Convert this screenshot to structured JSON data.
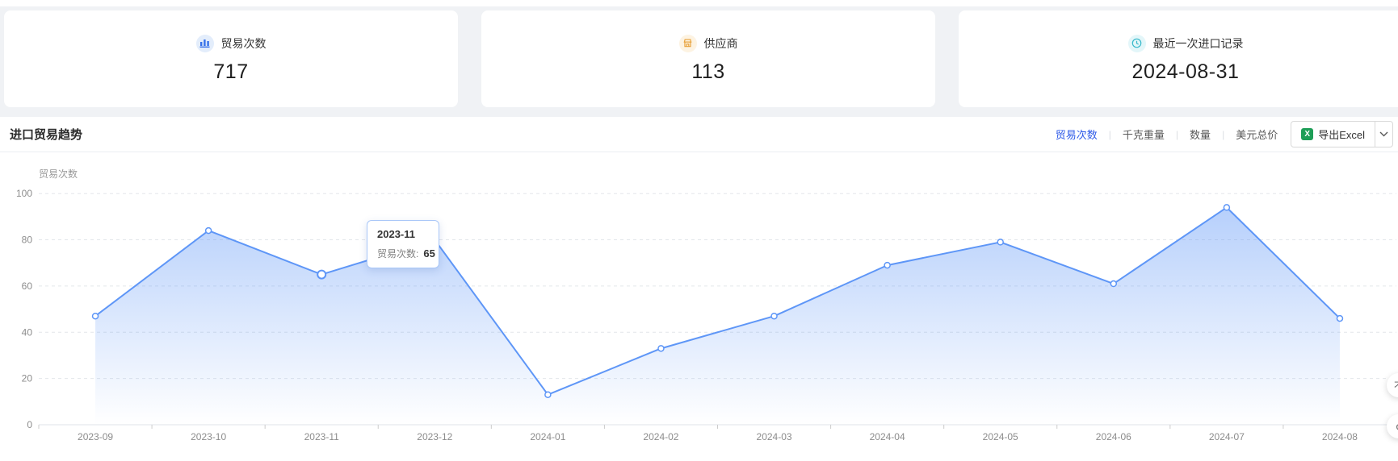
{
  "cards": [
    {
      "label": "贸易次数",
      "value": "717",
      "icon": "bar-chart-icon",
      "icon_color": "#3671e9",
      "icon_bg": "#e3edfb"
    },
    {
      "label": "供应商",
      "value": "113",
      "icon": "supplier-icon",
      "icon_color": "#e8a33d",
      "icon_bg": "#fdf3e2"
    },
    {
      "label": "最近一次进口记录",
      "value": "2024-08-31",
      "icon": "clock-icon",
      "icon_color": "#35b8ca",
      "icon_bg": "#e3f6f9"
    }
  ],
  "trend_panel": {
    "title": "进口贸易趋势",
    "tabs": [
      {
        "label": "贸易次数",
        "active": true
      },
      {
        "label": "千克重量",
        "active": false
      },
      {
        "label": "数量",
        "active": false
      },
      {
        "label": "美元总价",
        "active": false
      }
    ],
    "tab_separator": "|",
    "active_tab_color": "#2e5ae8",
    "export_button": {
      "label": "导出Excel",
      "icon": "excel-icon",
      "icon_color": "#1e9e57"
    },
    "dropdown_icon": "chevron-down-icon"
  },
  "chart_data": {
    "type": "area",
    "title": "",
    "ylabel": "贸易次数",
    "x": [
      "2023-09",
      "2023-10",
      "2023-11",
      "2023-12",
      "2024-01",
      "2024-02",
      "2024-03",
      "2024-04",
      "2024-05",
      "2024-06",
      "2024-07",
      "2024-08"
    ],
    "series": [
      {
        "name": "贸易次数",
        "values": [
          47,
          84,
          65,
          80,
          13,
          33,
          47,
          69,
          79,
          61,
          94,
          46
        ]
      }
    ],
    "ylim": [
      0,
      100
    ],
    "yticks": [
      0,
      20,
      40,
      60,
      80,
      100
    ],
    "grid": "horizontal-dashed",
    "legend": "none",
    "line_color": "#5e96f7",
    "area_top_color": "rgba(94,150,247,0.45)",
    "area_bottom_color": "rgba(94,150,247,0)",
    "tooltip": {
      "x_value": "2023-11",
      "series_label": "贸易次数:",
      "value": "65",
      "point_index": 2
    }
  },
  "floating_widgets": [
    {
      "glyph": "不"
    },
    {
      "glyph": "d"
    }
  ]
}
